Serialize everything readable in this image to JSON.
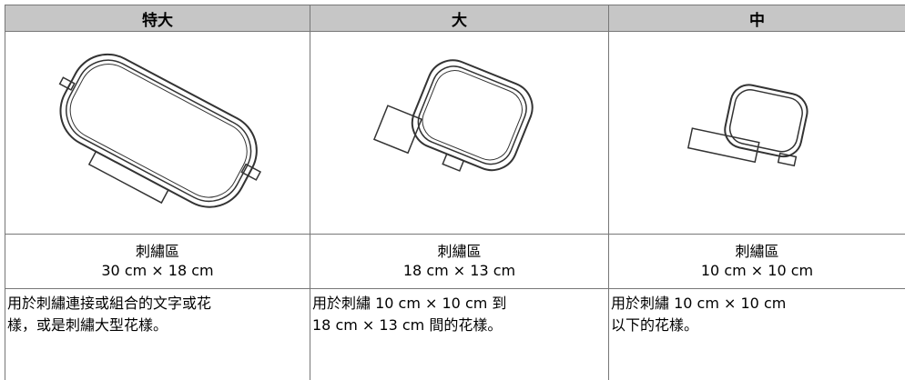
{
  "table": {
    "columns": [
      "特大",
      "大",
      "中"
    ],
    "rows": [
      {
        "area_label": "刺繡區",
        "area_size": "30 cm × 18 cm",
        "description": [
          "用於刺繡連接或組合的文字或花",
          "樣，或是刺繡大型花樣。"
        ]
      },
      {
        "area_label": "刺繡區",
        "area_size": "18 cm × 13 cm",
        "description": [
          "用於刺繡 10 cm × 10 cm 到",
          "18 cm × 13 cm 間的花樣。"
        ]
      },
      {
        "area_label": "刺繡區",
        "area_size": "10 cm × 10 cm",
        "description": [
          "用於刺繡 10 cm × 10 cm",
          "以下的花樣。"
        ]
      }
    ]
  }
}
